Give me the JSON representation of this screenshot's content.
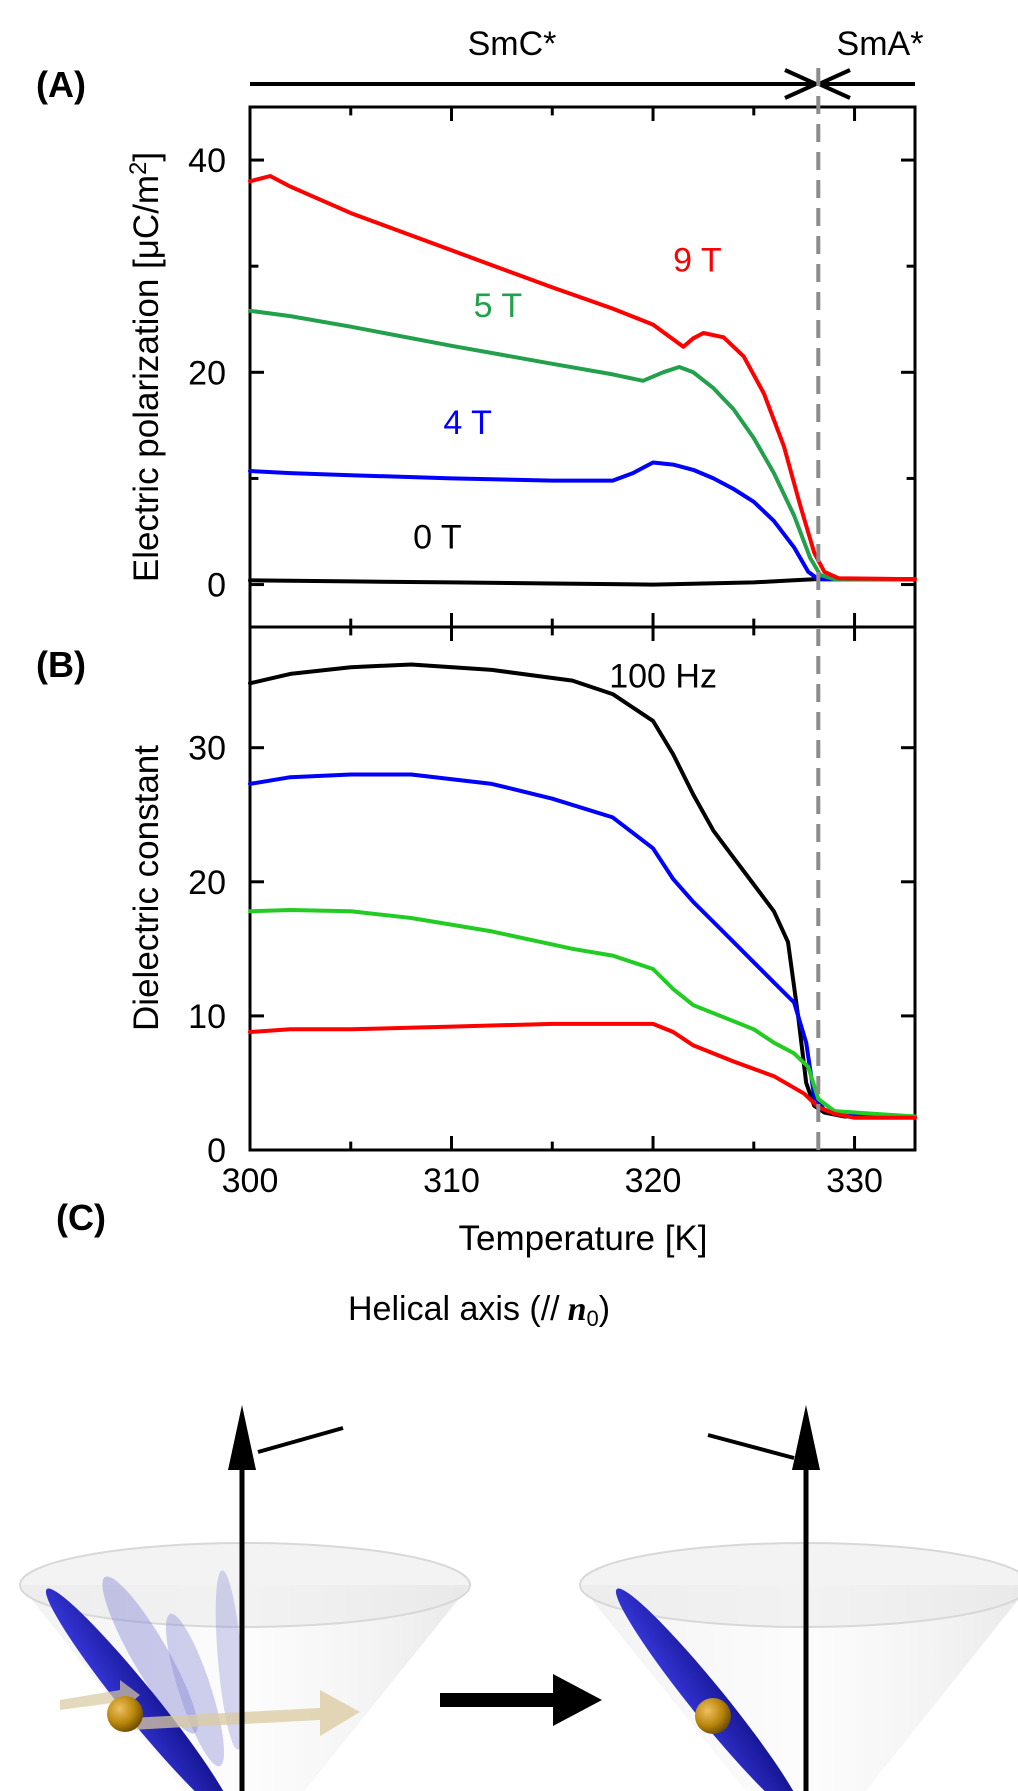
{
  "chart_data": [
    {
      "panel": "(A)",
      "type": "line",
      "ylabel_main": "Electric polarization [μC/m",
      "ylabel_sup": "2",
      "ylabel_close": "]",
      "xlim": [
        300,
        333
      ],
      "ylim": [
        -4,
        45
      ],
      "yticks": [
        "0",
        "20",
        "40"
      ],
      "ytick_values": [
        0,
        20,
        40
      ],
      "grid": false,
      "phase_labels": [
        "SmC*",
        "SmA*"
      ],
      "transition_temperature": 328.2,
      "series": [
        {
          "name": "0 T",
          "color": "#000000",
          "points": [
            [
              300,
              0.4
            ],
            [
              305,
              0.3
            ],
            [
              310,
              0.2
            ],
            [
              315,
              0.1
            ],
            [
              320,
              0.0
            ],
            [
              325,
              0.2
            ],
            [
              327,
              0.4
            ],
            [
              328,
              0.5
            ],
            [
              328.5,
              0.5
            ],
            [
              333,
              0.5
            ]
          ]
        },
        {
          "name": "4 T",
          "color": "#0000ff",
          "points": [
            [
              300,
              10.7
            ],
            [
              302,
              10.5
            ],
            [
              305,
              10.3
            ],
            [
              310,
              10.0
            ],
            [
              315,
              9.8
            ],
            [
              318,
              9.8
            ],
            [
              319,
              10.5
            ],
            [
              320,
              11.5
            ],
            [
              321,
              11.3
            ],
            [
              322,
              10.8
            ],
            [
              323,
              10.0
            ],
            [
              324,
              9.0
            ],
            [
              325,
              7.8
            ],
            [
              326,
              6.0
            ],
            [
              327,
              3.5
            ],
            [
              327.7,
              1.2
            ],
            [
              328.2,
              0.5
            ],
            [
              333,
              0.5
            ]
          ]
        },
        {
          "name": "5 T",
          "color": "#22a04b",
          "points": [
            [
              300,
              25.8
            ],
            [
              302,
              25.3
            ],
            [
              305,
              24.3
            ],
            [
              310,
              22.5
            ],
            [
              315,
              20.8
            ],
            [
              318,
              19.8
            ],
            [
              319.5,
              19.2
            ],
            [
              320.5,
              20.0
            ],
            [
              321.3,
              20.5
            ],
            [
              322,
              20.0
            ],
            [
              323,
              18.5
            ],
            [
              324,
              16.5
            ],
            [
              325,
              13.8
            ],
            [
              326,
              10.5
            ],
            [
              327,
              6.5
            ],
            [
              327.8,
              2.5
            ],
            [
              328.3,
              0.9
            ],
            [
              329,
              0.5
            ],
            [
              333,
              0.5
            ]
          ]
        },
        {
          "name": "9 T",
          "color": "#ff0000",
          "points": [
            [
              300,
              38.0
            ],
            [
              301,
              38.5
            ],
            [
              302,
              37.5
            ],
            [
              305,
              35.0
            ],
            [
              310,
              31.5
            ],
            [
              315,
              28.0
            ],
            [
              318,
              26.0
            ],
            [
              320,
              24.5
            ],
            [
              321.5,
              22.4
            ],
            [
              322,
              23.2
            ],
            [
              322.5,
              23.7
            ],
            [
              323.5,
              23.3
            ],
            [
              324.5,
              21.5
            ],
            [
              325.5,
              18.0
            ],
            [
              326.5,
              13.0
            ],
            [
              327.3,
              7.5
            ],
            [
              328,
              3.0
            ],
            [
              328.5,
              1.2
            ],
            [
              329.2,
              0.6
            ],
            [
              333,
              0.5
            ]
          ]
        }
      ],
      "annotations": [
        {
          "text": "9 T",
          "x": 322.2,
          "y": 29.5,
          "color": "#ff0000"
        },
        {
          "text": "5 T",
          "x": 312.3,
          "y": 25.2,
          "color": "#22a04b"
        },
        {
          "text": "4 T",
          "x": 310.8,
          "y": 14.2,
          "color": "#0000ff"
        },
        {
          "text": "0 T",
          "x": 309.3,
          "y": 3.4,
          "color": "#000000"
        }
      ]
    },
    {
      "panel": "(B)",
      "type": "line",
      "ylabel": "Dielectric constant",
      "xlabel": "Temperature [K]",
      "xlim": [
        300,
        333
      ],
      "ylim": [
        0,
        39
      ],
      "xticks": [
        "300",
        "310",
        "320",
        "330"
      ],
      "xtick_values": [
        300,
        310,
        320,
        330
      ],
      "yticks": [
        "0",
        "10",
        "20",
        "30"
      ],
      "ytick_values": [
        0,
        10,
        20,
        30
      ],
      "grid": false,
      "series": [
        {
          "name": "black",
          "color": "#000000",
          "points": [
            [
              300,
              34.8
            ],
            [
              302,
              35.5
            ],
            [
              305,
              36.0
            ],
            [
              308,
              36.2
            ],
            [
              312,
              35.8
            ],
            [
              316,
              35.0
            ],
            [
              318,
              34.0
            ],
            [
              320,
              32.0
            ],
            [
              321,
              29.5
            ],
            [
              322,
              26.5
            ],
            [
              323,
              23.8
            ],
            [
              324,
              21.8
            ],
            [
              325,
              19.8
            ],
            [
              326,
              17.8
            ],
            [
              326.7,
              15.5
            ],
            [
              327.2,
              10.0
            ],
            [
              327.6,
              5.0
            ],
            [
              328,
              3.3
            ],
            [
              328.5,
              2.8
            ],
            [
              329.5,
              2.5
            ],
            [
              333,
              2.5
            ]
          ]
        },
        {
          "name": "blue",
          "color": "#0000ff",
          "points": [
            [
              300,
              27.3
            ],
            [
              302,
              27.8
            ],
            [
              305,
              28.0
            ],
            [
              308,
              28.0
            ],
            [
              312,
              27.3
            ],
            [
              315,
              26.2
            ],
            [
              318,
              24.8
            ],
            [
              320,
              22.5
            ],
            [
              321,
              20.2
            ],
            [
              322,
              18.5
            ],
            [
              323,
              17.0
            ],
            [
              324,
              15.5
            ],
            [
              325,
              14.0
            ],
            [
              326,
              12.5
            ],
            [
              327,
              11.0
            ],
            [
              327.6,
              8.0
            ],
            [
              328,
              4.0
            ],
            [
              328.5,
              3.0
            ],
            [
              329.5,
              2.6
            ],
            [
              333,
              2.5
            ]
          ]
        },
        {
          "name": "green",
          "color": "#22cc22",
          "points": [
            [
              300,
              17.8
            ],
            [
              302,
              17.9
            ],
            [
              305,
              17.8
            ],
            [
              308,
              17.3
            ],
            [
              312,
              16.3
            ],
            [
              316,
              15.0
            ],
            [
              318,
              14.5
            ],
            [
              320,
              13.5
            ],
            [
              321,
              12.0
            ],
            [
              322,
              10.8
            ],
            [
              323,
              10.2
            ],
            [
              325,
              9.0
            ],
            [
              326,
              8.0
            ],
            [
              327,
              7.2
            ],
            [
              327.7,
              6.2
            ],
            [
              328.2,
              3.8
            ],
            [
              329,
              2.9
            ],
            [
              333,
              2.5
            ]
          ]
        },
        {
          "name": "red",
          "color": "#ff0000",
          "points": [
            [
              300,
              8.8
            ],
            [
              302,
              9.0
            ],
            [
              305,
              9.0
            ],
            [
              310,
              9.2
            ],
            [
              315,
              9.4
            ],
            [
              320,
              9.4
            ],
            [
              321,
              8.8
            ],
            [
              322,
              7.8
            ],
            [
              324,
              6.6
            ],
            [
              326,
              5.5
            ],
            [
              327.5,
              4.2
            ],
            [
              328.2,
              3.2
            ],
            [
              329,
              2.7
            ],
            [
              330,
              2.4
            ],
            [
              333,
              2.4
            ]
          ]
        }
      ],
      "annotations": [
        {
          "text": "100 Hz",
          "x": 320.5,
          "y": 34.5,
          "color": "#000000"
        }
      ]
    }
  ],
  "panel_c": {
    "label": "(C)",
    "axis_label_text": "Helical axis (//",
    "axis_label_n": "n",
    "axis_label_sub": "0",
    "axis_label_close": ")",
    "arrow_color": "#000000",
    "molecule_color": "#1a1ab0",
    "dipole_color": "#b8860b"
  }
}
